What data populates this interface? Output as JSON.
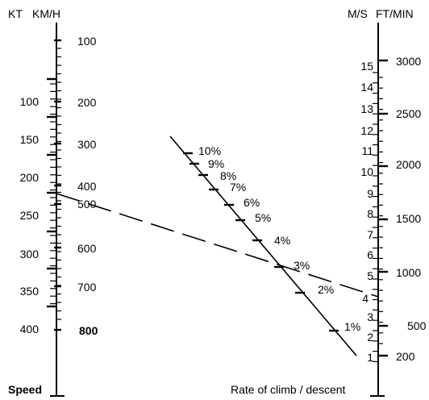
{
  "left_scale": {
    "unit_left": "KT",
    "unit_right": "KM/H",
    "footer_label": "Speed",
    "kt_ticks": [
      "100",
      "150",
      "200",
      "250",
      "300",
      "350",
      "400"
    ],
    "kmh_ticks": [
      "100",
      "200",
      "300",
      "400",
      "500",
      "600",
      "700",
      "800"
    ]
  },
  "right_scale": {
    "unit_left": "M/S",
    "unit_right": "FT/MIN",
    "footer_label": "Rate of climb / descent",
    "ms_ticks": [
      "1",
      "2",
      "3",
      "4",
      "5",
      "6",
      "7",
      "8",
      "9",
      "10",
      "11",
      "12",
      "13",
      "14",
      "15"
    ],
    "ftmin_ticks": [
      "200",
      "500",
      "1000",
      "1500",
      "2000",
      "2500",
      "3000"
    ]
  },
  "gradient_scale": {
    "ticks": [
      "1%",
      "2%",
      "3%",
      "4%",
      "5%",
      "6%",
      "7%",
      "8%",
      "9%",
      "10%"
    ]
  },
  "example_line": {
    "from_speed_kt": "250",
    "to_rate_ms": "4",
    "gradient": "3%"
  }
}
